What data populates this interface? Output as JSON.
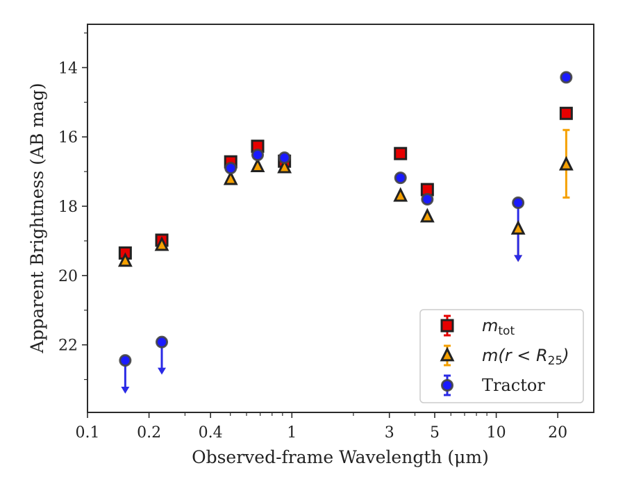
{
  "chart_data": {
    "type": "scatter",
    "xlabel": "Observed-frame Wavelength (μm)",
    "ylabel": "Apparent Brightness (AB mag)",
    "xscale": "log",
    "xlim": [
      0.1,
      30
    ],
    "ylim": [
      23.95,
      12.75
    ],
    "y_inverted": true,
    "x_ticks": [
      0.1,
      0.2,
      0.4,
      1,
      3,
      5,
      10,
      20
    ],
    "x_tick_labels": [
      "0.1",
      "0.2",
      "0.4",
      "1",
      "3",
      "5",
      "10",
      "20"
    ],
    "y_ticks": [
      14,
      16,
      18,
      20,
      22
    ],
    "y_tick_labels": [
      "14",
      "16",
      "18",
      "20",
      "22"
    ],
    "legend": {
      "position": "lower-right",
      "entries": [
        {
          "series": "mtot",
          "prefix": "m",
          "sub": "tot",
          "tail": ""
        },
        {
          "series": "r25",
          "prefix": "m(r < R",
          "sub": "25",
          "tail": ")"
        },
        {
          "series": "tractor",
          "text": "Tractor"
        }
      ]
    },
    "series": [
      {
        "key": "mtot",
        "marker": "square",
        "color": "#e60000",
        "errcolor": "#e60000",
        "points": [
          {
            "x": 0.153,
            "y": 19.35
          },
          {
            "x": 0.231,
            "y": 18.98
          },
          {
            "x": 0.502,
            "y": 16.72
          },
          {
            "x": 0.68,
            "y": 16.27
          },
          {
            "x": 0.92,
            "y": 16.7
          },
          {
            "x": 3.4,
            "y": 16.48
          },
          {
            "x": 4.6,
            "y": 17.52
          },
          {
            "x": 22.0,
            "y": 15.32
          }
        ]
      },
      {
        "key": "r25",
        "marker": "triangle",
        "color": "#f5a000",
        "errcolor": "#f5a000",
        "points": [
          {
            "x": 0.153,
            "y": 19.58
          },
          {
            "x": 0.231,
            "y": 19.12
          },
          {
            "x": 0.502,
            "y": 17.22
          },
          {
            "x": 0.68,
            "y": 16.85
          },
          {
            "x": 0.92,
            "y": 16.88
          },
          {
            "x": 3.4,
            "y": 17.7
          },
          {
            "x": 4.6,
            "y": 18.3
          },
          {
            "x": 12.8,
            "y": 18.65,
            "upper_limit": true,
            "arrow_to": 19.55
          },
          {
            "x": 22.0,
            "y": 16.8,
            "yerr": [
              1.0,
              0.95
            ]
          }
        ]
      },
      {
        "key": "tractor",
        "marker": "circle",
        "color": "#1a1aff",
        "errcolor": "#2a2ae6",
        "points": [
          {
            "x": 0.153,
            "y": 22.45,
            "upper_limit": true,
            "arrow_to": 23.35
          },
          {
            "x": 0.231,
            "y": 21.92,
            "upper_limit": true,
            "arrow_to": 22.8
          },
          {
            "x": 0.502,
            "y": 16.9
          },
          {
            "x": 0.68,
            "y": 16.52
          },
          {
            "x": 0.92,
            "y": 16.6
          },
          {
            "x": 3.4,
            "y": 17.18
          },
          {
            "x": 4.6,
            "y": 17.8
          },
          {
            "x": 12.8,
            "y": 17.9,
            "upper_limit": true,
            "arrow_to": 19.55
          },
          {
            "x": 22.0,
            "y": 14.28
          }
        ]
      }
    ]
  }
}
